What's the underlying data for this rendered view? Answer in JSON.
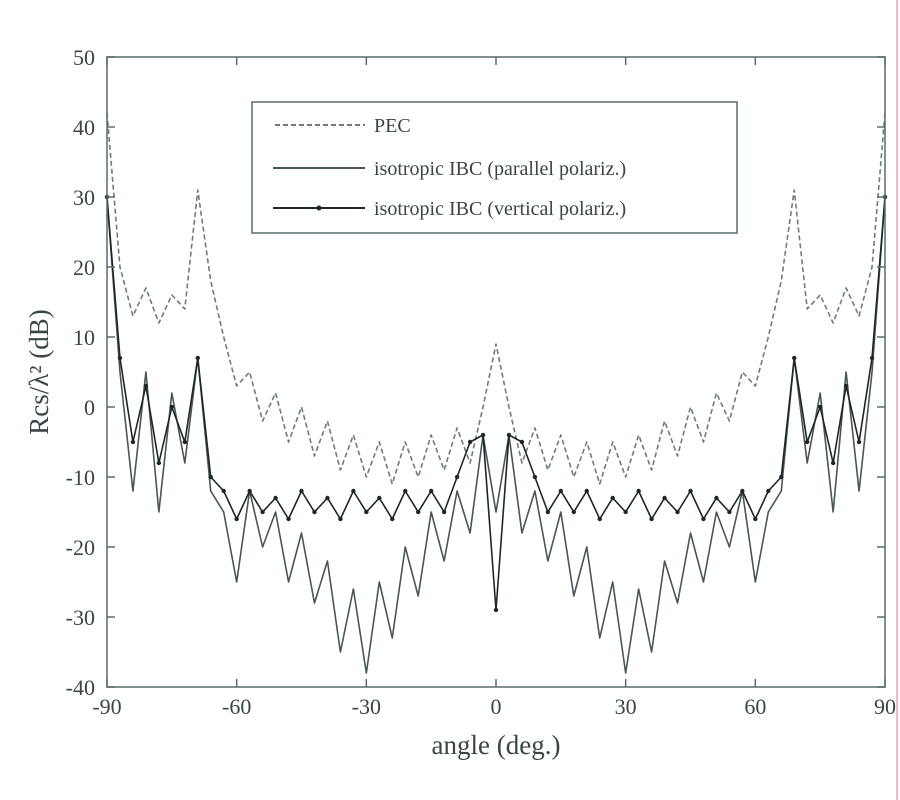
{
  "chart_data": {
    "type": "line",
    "title": "",
    "xlabel": "angle (deg.)",
    "ylabel": "Rcs/λ² (dB)",
    "xlim": [
      -90,
      90
    ],
    "ylim": [
      -40,
      50
    ],
    "xticks": [
      "-90",
      "-60",
      "-30",
      "0",
      "30",
      "60",
      "90"
    ],
    "yticks": [
      "-40",
      "-30",
      "-20",
      "-10",
      "0",
      "10",
      "20",
      "30",
      "40",
      "50"
    ],
    "grid": false,
    "legend_position": "top-center",
    "x": {
      "start": -90,
      "step": 3
    },
    "series": [
      {
        "name": "PEC",
        "style": "dashed",
        "color": "#6f7b80",
        "values": [
          42,
          20,
          13,
          17,
          12,
          16,
          14,
          31,
          18,
          10,
          3,
          5,
          -2,
          2,
          -5,
          0,
          -7,
          -2,
          -9,
          -4,
          -10,
          -5,
          -11,
          -5,
          -10,
          -4,
          -9,
          -3,
          -8,
          0,
          9,
          0,
          -8,
          -3,
          -9,
          -4,
          -10,
          -5,
          -11,
          -5,
          -10,
          -4,
          -9,
          -2,
          -7,
          0,
          -5,
          2,
          -2,
          5,
          3,
          10,
          18,
          31,
          14,
          16,
          12,
          17,
          13,
          20,
          42
        ]
      },
      {
        "name": "isotropic IBC (parallel polariz.)",
        "style": "solid",
        "color": "#4a5558",
        "values": [
          30,
          5,
          -12,
          5,
          -15,
          2,
          -8,
          7,
          -12,
          -15,
          -25,
          -12,
          -20,
          -15,
          -25,
          -18,
          -28,
          -22,
          -35,
          -26,
          -38,
          -25,
          -33,
          -20,
          -27,
          -15,
          -22,
          -12,
          -18,
          -4,
          -15,
          -4,
          -18,
          -12,
          -22,
          -15,
          -27,
          -20,
          -33,
          -25,
          -38,
          -26,
          -35,
          -22,
          -28,
          -18,
          -25,
          -15,
          -20,
          -12,
          -25,
          -15,
          -12,
          7,
          -8,
          2,
          -15,
          5,
          -12,
          5,
          30
        ]
      },
      {
        "name": "isotropic IBC (vertical polariz.)",
        "style": "solid-dot",
        "color": "#1e2628",
        "values": [
          30,
          7,
          -5,
          3,
          -8,
          0,
          -5,
          7,
          -10,
          -12,
          -16,
          -12,
          -15,
          -13,
          -16,
          -12,
          -15,
          -13,
          -16,
          -12,
          -15,
          -13,
          -16,
          -12,
          -15,
          -12,
          -15,
          -10,
          -5,
          -4,
          -29,
          -4,
          -5,
          -10,
          -15,
          -12,
          -15,
          -12,
          -16,
          -13,
          -15,
          -12,
          -16,
          -13,
          -15,
          -12,
          -16,
          -13,
          -15,
          -12,
          -16,
          -12,
          -10,
          7,
          -5,
          0,
          -8,
          3,
          -5,
          7,
          30
        ]
      }
    ]
  }
}
